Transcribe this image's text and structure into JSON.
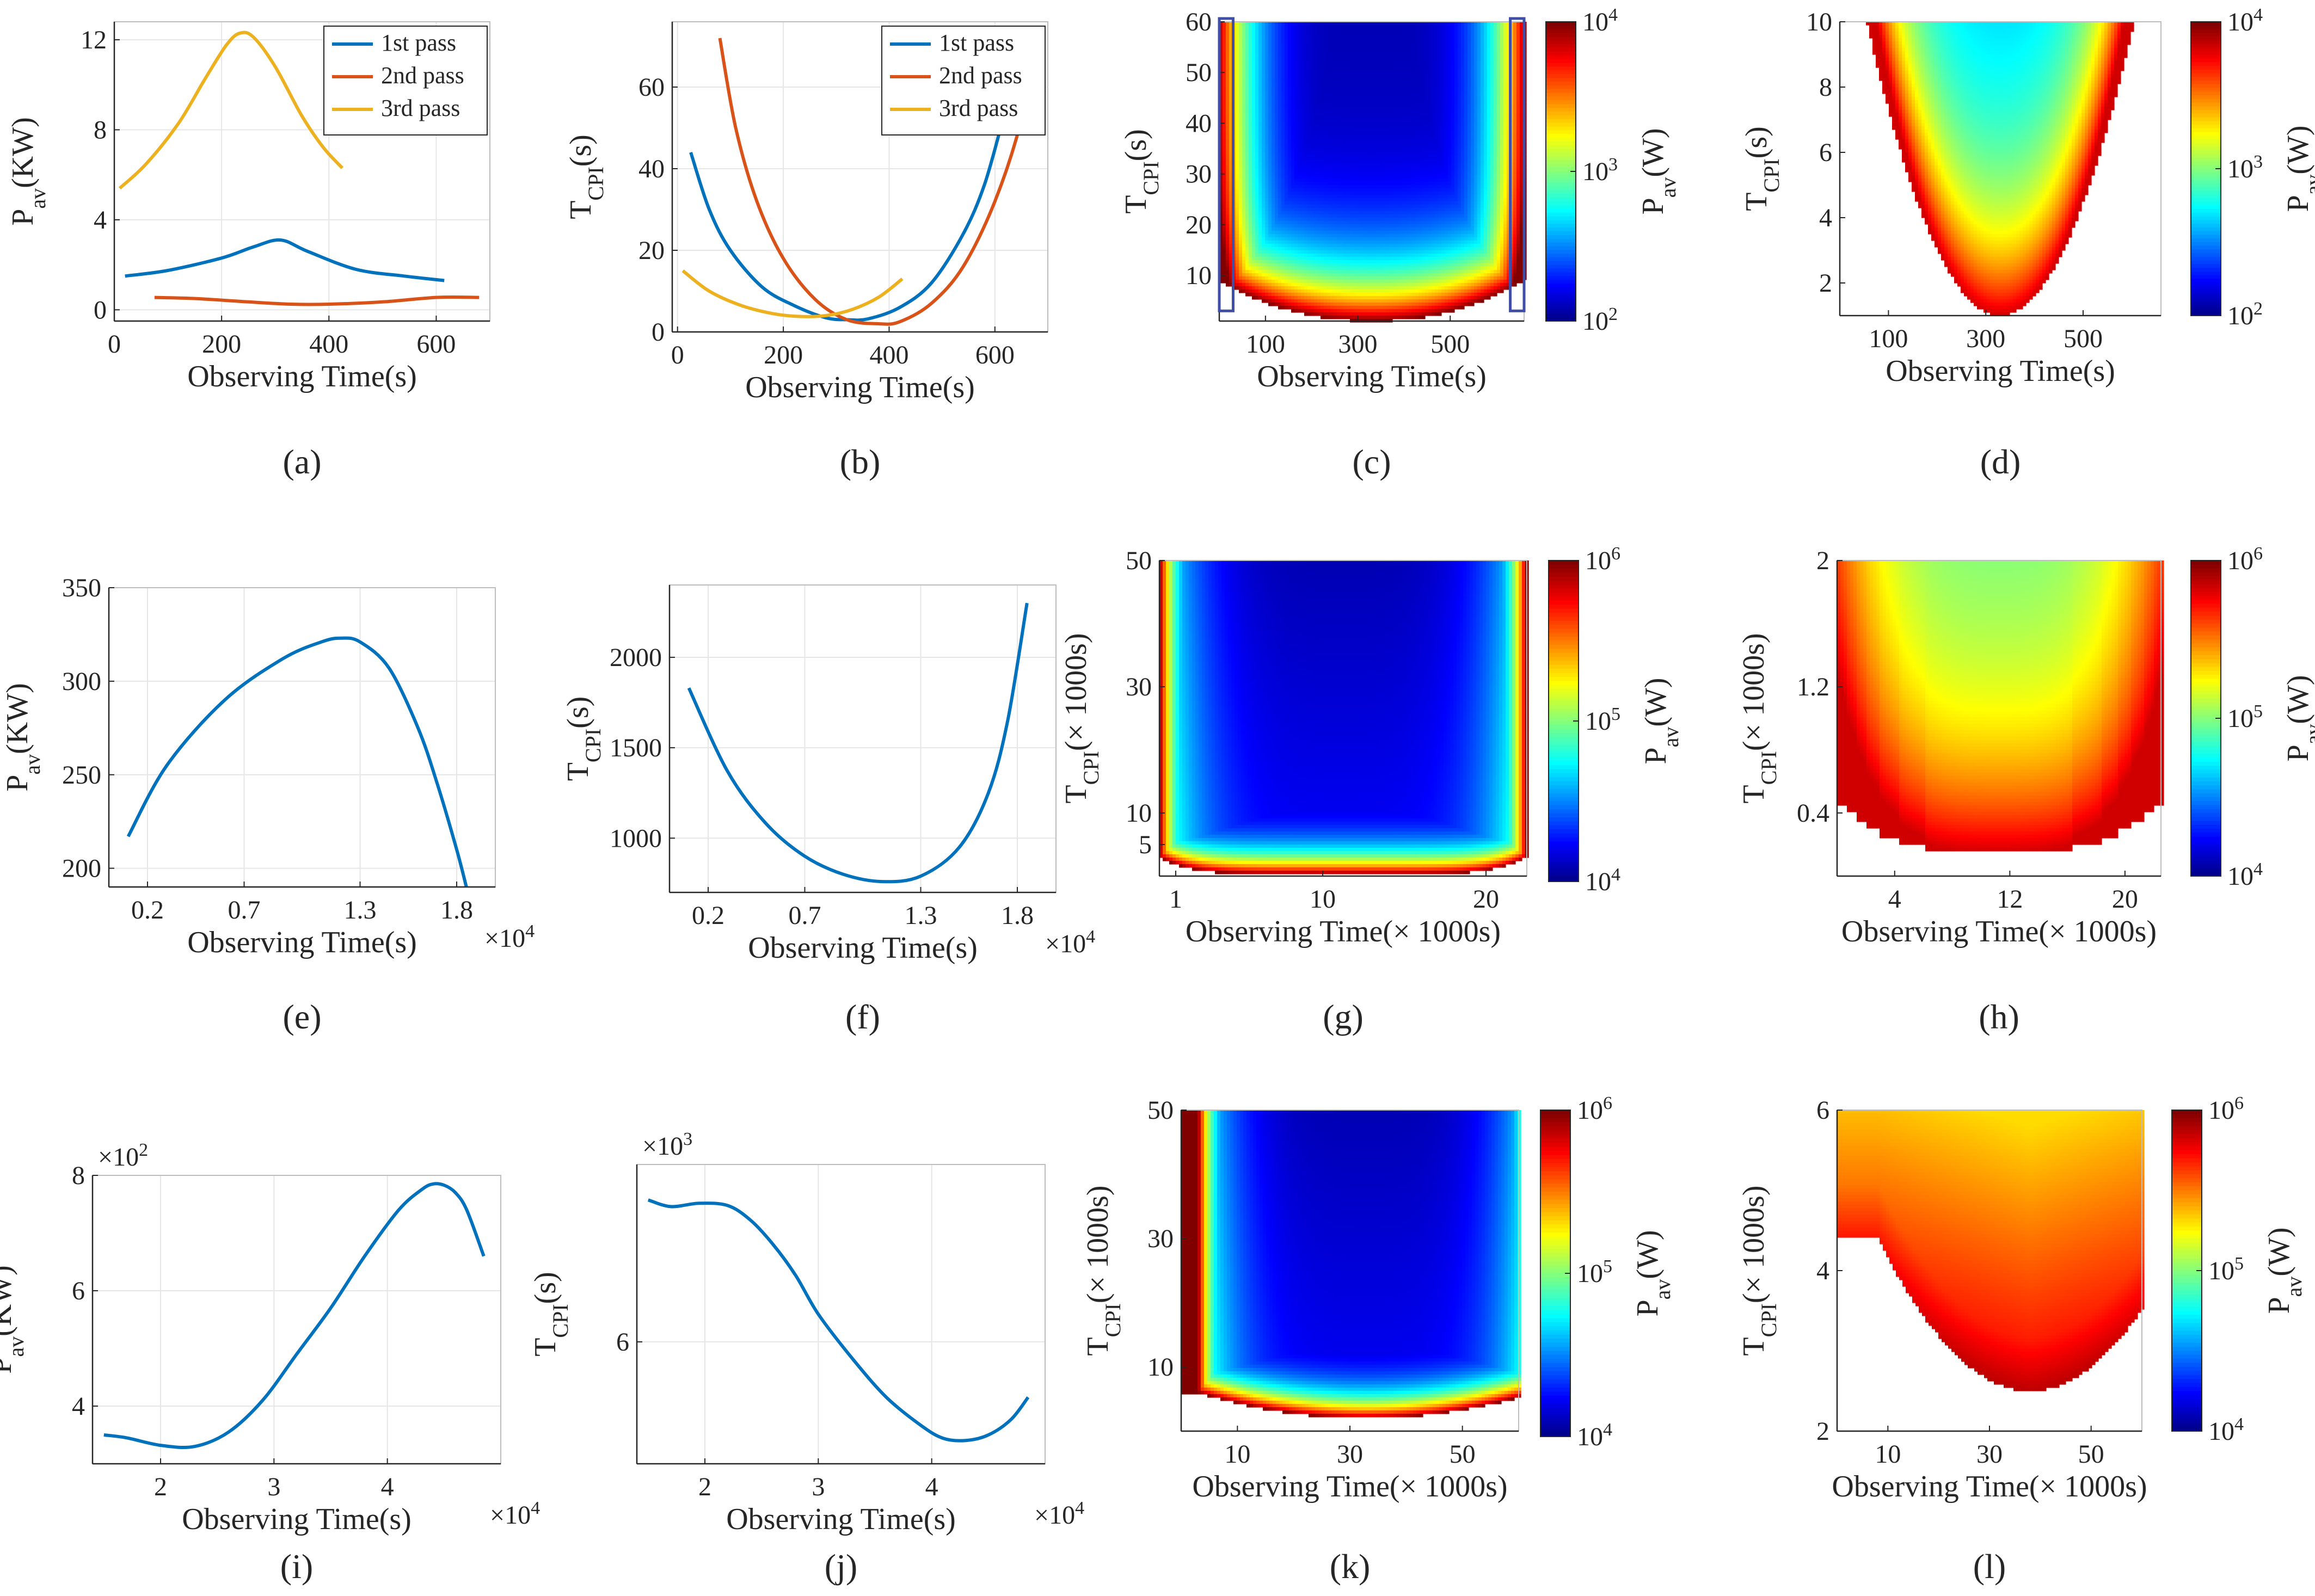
{
  "figure": {
    "colors": {
      "blue": "#0072BD",
      "orange": "#D95319",
      "yellow": "#EDB120",
      "box": "#3F4FA8",
      "grid": "#E6E6E6",
      "axis": "#262626"
    },
    "colormap": "jet",
    "font_note": "all text rendered in serif"
  },
  "chart_data": [
    {
      "id": "a",
      "caption": "(a)",
      "type": "line",
      "xlabel": "Observing Time(s)",
      "ylabel_main": "P",
      "ylabel_sub": "av",
      "ylabel_tail": "(KW)",
      "xlim": [
        0,
        700
      ],
      "ylim": [
        -0.5,
        12.8
      ],
      "xticks": [
        0,
        200,
        400,
        600
      ],
      "xtick_labels": [
        "0",
        "200",
        "400",
        "600"
      ],
      "yticks": [
        0,
        4,
        8,
        12
      ],
      "ytick_labels": [
        "0",
        "4",
        "8",
        "12"
      ],
      "legend": [
        "1st pass",
        "2nd pass",
        "3rd pass"
      ],
      "series": [
        {
          "name": "1st pass",
          "color": "#0072BD",
          "x": [
            20,
            100,
            200,
            260,
            310,
            360,
            450,
            540,
            615
          ],
          "y": [
            1.5,
            1.75,
            2.3,
            2.8,
            3.1,
            2.6,
            1.8,
            1.5,
            1.3
          ]
        },
        {
          "name": "2nd pass",
          "color": "#D95319",
          "x": [
            75,
            150,
            250,
            330,
            400,
            500,
            600,
            680
          ],
          "y": [
            0.55,
            0.5,
            0.35,
            0.25,
            0.25,
            0.35,
            0.55,
            0.55
          ]
        },
        {
          "name": "3rd pass",
          "color": "#EDB120",
          "x": [
            10,
            60,
            120,
            170,
            210,
            235,
            260,
            300,
            350,
            390,
            425
          ],
          "y": [
            5.4,
            6.5,
            8.3,
            10.3,
            11.8,
            12.3,
            12.1,
            10.8,
            8.6,
            7.2,
            6.3
          ]
        }
      ]
    },
    {
      "id": "b",
      "caption": "(b)",
      "type": "line",
      "xlabel": "Observing Time(s)",
      "ylabel_main": "T",
      "ylabel_sub": "CPI",
      "ylabel_tail": "(s)",
      "xlim": [
        -10,
        700
      ],
      "ylim": [
        0,
        76
      ],
      "xticks": [
        0,
        200,
        400,
        600
      ],
      "xtick_labels": [
        "0",
        "200",
        "400",
        "600"
      ],
      "yticks": [
        0,
        20,
        40,
        60
      ],
      "ytick_labels": [
        "0",
        "20",
        "40",
        "60"
      ],
      "legend": [
        "1st pass",
        "2nd pass",
        "3rd pass"
      ],
      "series": [
        {
          "name": "1st pass",
          "color": "#0072BD",
          "x": [
            25,
            60,
            100,
            160,
            220,
            280,
            320,
            360,
            420,
            480,
            540,
            580,
            615
          ],
          "y": [
            44,
            30,
            20,
            11,
            6.5,
            3.5,
            3,
            3.2,
            6,
            12,
            24,
            36,
            52
          ]
        },
        {
          "name": "2nd pass",
          "color": "#D95319",
          "x": [
            80,
            110,
            150,
            200,
            260,
            320,
            380,
            420,
            480,
            540,
            600,
            650,
            680
          ],
          "y": [
            72,
            50,
            32,
            18,
            8,
            3,
            2,
            2.5,
            7,
            16,
            32,
            52,
            73
          ]
        },
        {
          "name": "3rd pass",
          "color": "#EDB120",
          "x": [
            10,
            60,
            120,
            180,
            230,
            280,
            330,
            380,
            425
          ],
          "y": [
            15,
            10,
            6.5,
            4.5,
            3.8,
            4,
            5.5,
            8.5,
            13
          ]
        }
      ]
    },
    {
      "id": "c",
      "caption": "(c)",
      "type": "heatmap",
      "xlabel": "Observing Time(s)",
      "ylabel_main": "T",
      "ylabel_sub": "CPI",
      "ylabel_tail": "(s)",
      "xlim": [
        0,
        660
      ],
      "ylim": [
        1,
        60
      ],
      "xticks": [
        100,
        300,
        500
      ],
      "xtick_labels": [
        "100",
        "300",
        "500"
      ],
      "yticks": [
        10,
        20,
        30,
        40,
        50,
        60
      ],
      "ytick_labels": [
        "10",
        "20",
        "30",
        "40",
        "50",
        "60"
      ],
      "colorbar": {
        "label_main": "P",
        "label_sub": "av",
        "label_tail": "(W)",
        "ticks": [
          "10^2",
          "10^3",
          "10^4"
        ]
      },
      "center_x": 330,
      "min_y_center": 1,
      "min_y_edge": 9,
      "edge_curve_power": 2.2,
      "cmin": 0.05,
      "cmax": 1.0,
      "gamma": 1.4,
      "highlight_boxes": [
        {
          "x0": 0,
          "x1": 30,
          "y0": 3,
          "y1": 60
        },
        {
          "x0": 630,
          "x1": 660,
          "y0": 3,
          "y1": 60
        }
      ]
    },
    {
      "id": "d",
      "caption": "(d)",
      "type": "heatmap",
      "xlabel": "Observing Time(s)",
      "ylabel_main": "T",
      "ylabel_sub": "CPI",
      "ylabel_tail": "(s)",
      "xlim": [
        0,
        660
      ],
      "ylim": [
        1,
        10
      ],
      "xticks": [
        100,
        300,
        500
      ],
      "xtick_labels": [
        "100",
        "300",
        "500"
      ],
      "yticks": [
        2,
        4,
        6,
        8,
        10
      ],
      "ytick_labels": [
        "2",
        "4",
        "6",
        "8",
        "10"
      ],
      "colorbar": {
        "label_main": "P",
        "label_sub": "av",
        "label_tail": "(W)",
        "ticks": [
          "10^2",
          "10^3",
          "10^4"
        ]
      },
      "center_x": 330,
      "min_y_center": 1.0,
      "min_y_edge": 14,
      "edge_curve_power": 2.0,
      "cmin": 0.28,
      "cmax": 0.92,
      "gamma": 1.1,
      "masked": true
    },
    {
      "id": "e",
      "caption": "(e)",
      "type": "line",
      "xlabel": "Observing Time(s)",
      "ylabel_main": "P",
      "ylabel_sub": "av",
      "ylabel_tail": "(KW)",
      "xlim": [
        0,
        20000
      ],
      "ylim": [
        190,
        350
      ],
      "xticks": [
        2000,
        7000,
        13000,
        18000
      ],
      "xtick_labels": [
        "0.2",
        "0.7",
        "1.3",
        "1.8"
      ],
      "yticks": [
        200,
        250,
        300,
        350
      ],
      "ytick_labels": [
        "200",
        "250",
        "300",
        "350"
      ],
      "x_multiplier_base": "×10",
      "x_multiplier_exp": "4",
      "series": [
        {
          "name": "main",
          "color": "#0072BD",
          "x": [
            1000,
            3000,
            6000,
            9000,
            11000,
            12000,
            13000,
            14500,
            16000,
            17000,
            18000,
            18500
          ],
          "y": [
            217,
            255,
            290,
            312,
            321,
            323,
            321,
            307,
            275,
            245,
            210,
            190
          ]
        }
      ]
    },
    {
      "id": "f",
      "caption": "(f)",
      "type": "line",
      "xlabel": "Observing Time(s)",
      "ylabel_main": "T",
      "ylabel_sub": "CPI",
      "ylabel_tail": "(s)",
      "xlim": [
        0,
        20000
      ],
      "ylim": [
        700,
        2400
      ],
      "xticks": [
        2000,
        7000,
        13000,
        18000
      ],
      "xtick_labels": [
        "0.2",
        "0.7",
        "1.3",
        "1.8"
      ],
      "yticks": [
        1000,
        1500,
        2000
      ],
      "ytick_labels": [
        "1000",
        "1500",
        "2000"
      ],
      "x_multiplier_base": "×10",
      "x_multiplier_exp": "4",
      "series": [
        {
          "name": "main",
          "color": "#0072BD",
          "x": [
            1000,
            3000,
            5000,
            7000,
            9000,
            11000,
            13000,
            15000,
            16500,
            17500,
            18500
          ],
          "y": [
            1830,
            1370,
            1080,
            900,
            800,
            760,
            790,
            950,
            1250,
            1650,
            2300
          ]
        }
      ]
    },
    {
      "id": "g",
      "caption": "(g)",
      "type": "heatmap",
      "xlabel": "Observing Time(× 1000s)",
      "ylabel_main": "T",
      "ylabel_sub": "CPI",
      "ylabel_tail": "(× 1000s)",
      "xlim": [
        0,
        22.5
      ],
      "ylim": [
        0,
        50
      ],
      "xticks": [
        1,
        10,
        20
      ],
      "xtick_labels": [
        "1",
        "10",
        "20"
      ],
      "yticks": [
        5,
        10,
        30,
        50
      ],
      "ytick_labels": [
        "5",
        "10",
        "30",
        "50"
      ],
      "colorbar": {
        "label_main": "P",
        "label_sub": "av",
        "label_tail": "(W)",
        "ticks": [
          "10^4",
          "10^5",
          "10^6"
        ]
      },
      "center_x": 11.25,
      "min_y_center": 0.3,
      "min_y_edge": 3,
      "edge_curve_power": 6,
      "cmin": 0.05,
      "cmax": 1.0,
      "gamma": 1.6,
      "plateau": true
    },
    {
      "id": "h",
      "caption": "(h)",
      "type": "heatmap",
      "xlabel": "Observing Time(× 1000s)",
      "ylabel_main": "T",
      "ylabel_sub": "CPI",
      "ylabel_tail": "(× 1000s)",
      "xlim": [
        0,
        22.5
      ],
      "ylim": [
        0,
        2
      ],
      "xticks": [
        4,
        12,
        20
      ],
      "xtick_labels": [
        "4",
        "12",
        "20"
      ],
      "yticks": [
        0.4,
        1.2,
        2
      ],
      "ytick_labels": [
        "0.4",
        "1.2",
        "2"
      ],
      "colorbar": {
        "label_main": "P",
        "label_sub": "av",
        "label_tail": "(W)",
        "ticks": [
          "10^4",
          "10^5",
          "10^6"
        ]
      },
      "center_x": 11.25,
      "min_y_center": 0.12,
      "min_y_edge": 0.45,
      "edge_curve_power": 3,
      "cmin": 0.45,
      "cmax": 0.92,
      "gamma": 1.0,
      "masked": true,
      "staircase": true
    },
    {
      "id": "i",
      "caption": "(i)",
      "type": "line",
      "xlabel": "Observing Time(s)",
      "ylabel_main": "P",
      "ylabel_sub": "av",
      "ylabel_tail": "(KW)",
      "xlim": [
        14000,
        50000
      ],
      "ylim": [
        300,
        800
      ],
      "xticks": [
        20000,
        30000,
        40000
      ],
      "xtick_labels": [
        "2",
        "3",
        "4"
      ],
      "yticks": [
        400,
        600,
        800
      ],
      "ytick_labels": [
        "4",
        "6",
        "8"
      ],
      "x_multiplier_base": "×10",
      "x_multiplier_exp": "4",
      "y_multiplier_base": "×10",
      "y_multiplier_exp": "2",
      "series": [
        {
          "name": "main",
          "color": "#0072BD",
          "x": [
            15000,
            17000,
            20000,
            23000,
            26000,
            29000,
            32000,
            35000,
            38000,
            41000,
            43000,
            44000,
            45000,
            46000,
            47000,
            48500
          ],
          "y": [
            350,
            345,
            332,
            330,
            355,
            410,
            490,
            570,
            660,
            740,
            775,
            785,
            783,
            770,
            740,
            660
          ]
        }
      ]
    },
    {
      "id": "j",
      "caption": "(j)",
      "type": "line",
      "xlabel": "Observing Time(s)",
      "ylabel_main": "T",
      "ylabel_sub": "CPI",
      "ylabel_tail": "(s)",
      "xlim": [
        14000,
        50000
      ],
      "ylim": [
        4900,
        7600
      ],
      "xticks": [
        20000,
        30000,
        40000
      ],
      "xtick_labels": [
        "2",
        "3",
        "4"
      ],
      "yticks": [
        6000
      ],
      "ytick_labels": [
        "6"
      ],
      "x_multiplier_base": "×10",
      "x_multiplier_exp": "4",
      "y_multiplier_base": "×10",
      "y_multiplier_exp": "3",
      "series": [
        {
          "name": "main",
          "color": "#0072BD",
          "x": [
            15000,
            17000,
            19500,
            22000,
            24000,
            26000,
            28000,
            30000,
            33000,
            36000,
            39000,
            41000,
            43000,
            45000,
            47000,
            48500
          ],
          "y": [
            7280,
            7220,
            7250,
            7230,
            7100,
            6880,
            6600,
            6250,
            5850,
            5500,
            5250,
            5130,
            5110,
            5160,
            5300,
            5500
          ]
        }
      ]
    },
    {
      "id": "k",
      "caption": "(k)",
      "type": "heatmap",
      "xlabel": "Observing Time(× 1000s)",
      "ylabel_main": "T",
      "ylabel_sub": "CPI",
      "ylabel_tail": "(× 1000s)",
      "xlim": [
        0,
        60
      ],
      "ylim": [
        0,
        50
      ],
      "xticks": [
        10,
        30,
        50
      ],
      "xtick_labels": [
        "10",
        "30",
        "50"
      ],
      "yticks": [
        10,
        30,
        50
      ],
      "ytick_labels": [
        "10",
        "30",
        "50"
      ],
      "colorbar": {
        "label_main": "P",
        "label_sub": "av",
        "label_tail": "(W)",
        "ticks": [
          "10^4",
          "10^5",
          "10^6"
        ]
      },
      "center_x": 33,
      "min_y_center": 2,
      "min_y_edge": 6,
      "edge_curve_power": 2,
      "cmin": 0.05,
      "cmax": 1.0,
      "gamma": 1.5,
      "plateau": true
    },
    {
      "id": "l",
      "caption": "(l)",
      "type": "heatmap",
      "xlabel": "Observing Time(× 1000s)",
      "ylabel_main": "T",
      "ylabel_sub": "CPI",
      "ylabel_tail": "(× 1000s)",
      "xlim": [
        0,
        60
      ],
      "ylim": [
        2,
        6
      ],
      "xticks": [
        10,
        30,
        50
      ],
      "xtick_labels": [
        "10",
        "30",
        "50"
      ],
      "yticks": [
        2,
        4,
        6
      ],
      "ytick_labels": [
        "2",
        "4",
        "6"
      ],
      "colorbar": {
        "label_main": "P",
        "label_sub": "av",
        "label_tail": "(W)",
        "ticks": [
          "10^4",
          "10^5",
          "10^6"
        ]
      },
      "center_x": 38,
      "min_y_center": 2.5,
      "min_y_edge": 4.4,
      "edge_curve_power": 2,
      "cmin": 0.66,
      "cmax": 0.96,
      "gamma": 1.0,
      "masked": true,
      "inverted": true
    }
  ]
}
